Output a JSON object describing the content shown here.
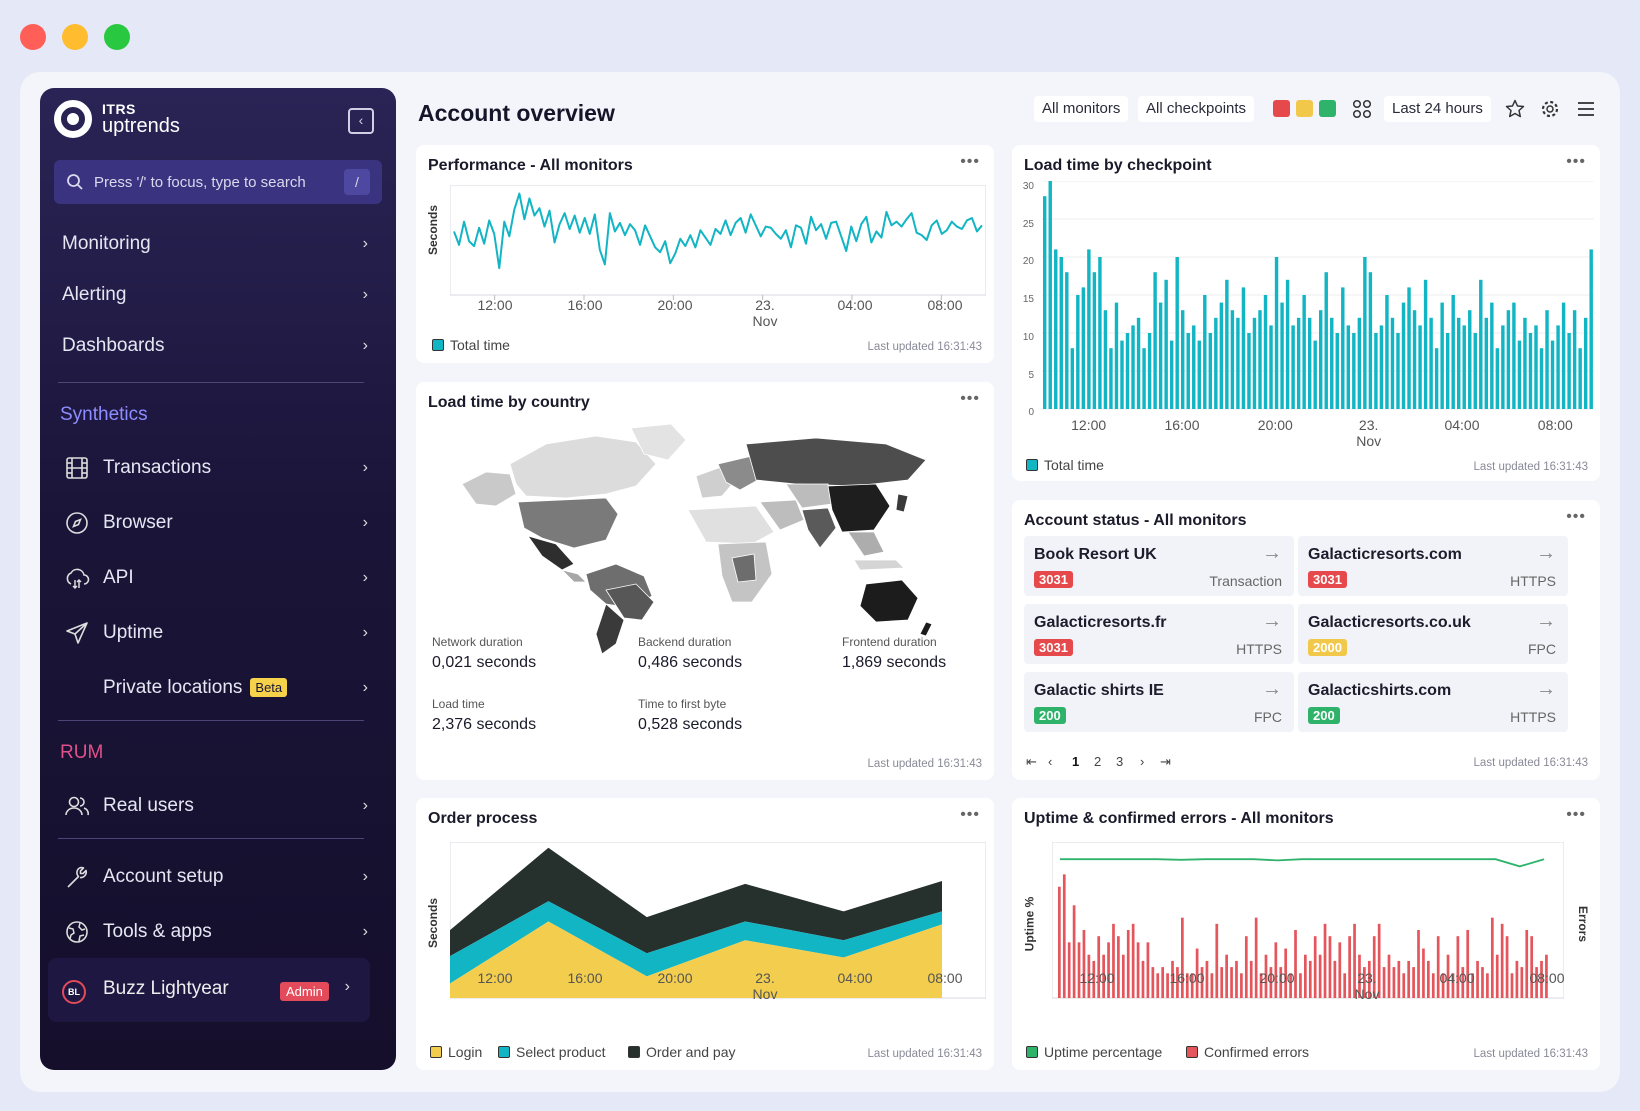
{
  "window_controls": {
    "close_color": "#ff5f57",
    "minimize_color": "#febc2e",
    "maximize_color": "#28c840"
  },
  "sidebar": {
    "brand_top": "ITRS",
    "brand_bottom": "uptrends",
    "search_placeholder": "Press '/' to focus, type to search",
    "search_key": "/",
    "top_items": [
      {
        "label": "Monitoring"
      },
      {
        "label": "Alerting"
      },
      {
        "label": "Dashboards"
      }
    ],
    "synthetics_heading": "Synthetics",
    "synthetics_items": [
      {
        "label": "Transactions",
        "icon": "film-icon"
      },
      {
        "label": "Browser",
        "icon": "compass-icon"
      },
      {
        "label": "API",
        "icon": "cloud-icon"
      },
      {
        "label": "Uptime",
        "icon": "send-icon"
      },
      {
        "label": "Private locations",
        "badge": "Beta"
      }
    ],
    "rum_heading": "RUM",
    "rum_items": [
      {
        "label": "Real users",
        "icon": "users-icon"
      }
    ],
    "setup_items": [
      {
        "label": "Account setup",
        "icon": "wrench-icon"
      },
      {
        "label": "Tools & apps",
        "icon": "globe-icon"
      }
    ],
    "user": {
      "initials": "BL",
      "name": "Buzz Lightyear",
      "role": "Admin"
    }
  },
  "header": {
    "title": "Account overview",
    "monitors": "All monitors",
    "checkpoints": "All checkpoints",
    "status_colors": [
      "#e6494c",
      "#f2c84b",
      "#2fb36b"
    ],
    "range": "Last 24 hours"
  },
  "x_ticks": [
    "12:00",
    "16:00",
    "20:00",
    "23. Nov",
    "04:00",
    "08:00"
  ],
  "performance": {
    "title": "Performance - All monitors",
    "ylabel": "Seconds",
    "legend": "Total time",
    "updated": "Last updated 16:31:43"
  },
  "checkpoint": {
    "title": "Load time by checkpoint",
    "legend": "Total time",
    "updated": "Last updated 16:31:43",
    "y_ticks": [
      "30",
      "25",
      "20",
      "15",
      "10",
      "5",
      "0"
    ]
  },
  "country": {
    "title": "Load time by country",
    "metrics": [
      {
        "label": "Network duration",
        "value": "0,021 seconds"
      },
      {
        "label": "Backend duration",
        "value": "0,486 seconds"
      },
      {
        "label": "Frontend duration",
        "value": "1,869 seconds"
      },
      {
        "label": "Load time",
        "value": "2,376 seconds"
      },
      {
        "label": "Time to first byte",
        "value": "0,528 seconds"
      }
    ],
    "updated": "Last updated 16:31:43"
  },
  "status": {
    "title": "Account status - All monitors",
    "tiles": [
      {
        "name": "Book Resort UK",
        "code": "3031",
        "type": "Transaction",
        "color": "#e6494c"
      },
      {
        "name": "Galacticresorts.com",
        "code": "3031",
        "type": "HTTPS",
        "color": "#e6494c"
      },
      {
        "name": "Galacticresorts.fr",
        "code": "3031",
        "type": "HTTPS",
        "color": "#e6494c"
      },
      {
        "name": "Galacticresorts.co.uk",
        "code": "2000",
        "type": "FPC",
        "color": "#f2c84b"
      },
      {
        "name": "Galactic shirts IE",
        "code": "200",
        "type": "FPC",
        "color": "#2fb36b"
      },
      {
        "name": "Galacticshirts.com",
        "code": "200",
        "type": "HTTPS",
        "color": "#2fb36b"
      }
    ],
    "pages": [
      "1",
      "2",
      "3"
    ],
    "updated": "Last updated 16:31:43"
  },
  "order": {
    "title": "Order process",
    "ylabel": "Seconds",
    "legend": [
      "Login",
      "Select product",
      "Order and pay"
    ],
    "updated": "Last updated 16:31:43"
  },
  "uptime": {
    "title": "Uptime & confirmed errors - All monitors",
    "ylabel_left": "Uptime %",
    "ylabel_right": "Errors",
    "legend": [
      "Uptime percentage",
      "Confirmed errors"
    ],
    "updated": "Last updated 16:31:43"
  },
  "chart_data": [
    {
      "type": "line",
      "name": "performance",
      "series": [
        {
          "name": "Total time",
          "color": "#12b5c4",
          "values": [
            5.2,
            4.1,
            6.0,
            4.4,
            4.0,
            5.5,
            4.2,
            6.1,
            5.0,
            2.2,
            6.0,
            4.8,
            7.0,
            8.3,
            6.2,
            7.9,
            6.5,
            7.1,
            5.6,
            6.9,
            4.3,
            5.8,
            6.7,
            5.4,
            6.5,
            5.1,
            6.3,
            5.0,
            6.6,
            3.7,
            2.5,
            6.7,
            5.2,
            5.9,
            4.9,
            5.8,
            5.3,
            4.1,
            5.7,
            4.8,
            3.9,
            3.5,
            4.4,
            2.6,
            3.4,
            4.6,
            4.0,
            4.9,
            3.9,
            5.3,
            4.7,
            4.1,
            5.4,
            5.0,
            6.1,
            4.9,
            5.9,
            6.3,
            5.1,
            6.6,
            5.7,
            4.8,
            5.6,
            5.5,
            5.0,
            4.6,
            5.3,
            3.9,
            5.7,
            5.5,
            4.2,
            6.4,
            5.3,
            5.8,
            4.6,
            5.9,
            6.0,
            4.8,
            3.6,
            5.6,
            4.4,
            5.8,
            6.4,
            4.3,
            5.2,
            4.7,
            6.8,
            5.7,
            6.0,
            5.6,
            6.2,
            6.7,
            5.1,
            4.9,
            4.5,
            5.7,
            6.1,
            5.0,
            5.3,
            6.0,
            5.6,
            5.4,
            6.1,
            6.3,
            5.2,
            5.7
          ]
        }
      ]
    },
    {
      "type": "bar",
      "name": "checkpoint",
      "ylim": [
        0,
        30
      ],
      "series": [
        {
          "name": "Total time",
          "color": "#12b5c4",
          "values": [
            28,
            30,
            21,
            20,
            18,
            8,
            15,
            16,
            21,
            18,
            20,
            13,
            8,
            14,
            9,
            10,
            11,
            12,
            8,
            10,
            18,
            14,
            17,
            9,
            20,
            13,
            10,
            11,
            9,
            15,
            10,
            12,
            14,
            17,
            13,
            12,
            16,
            10,
            12,
            13,
            15,
            11,
            20,
            14,
            17,
            11,
            12,
            15,
            12,
            9,
            13,
            18,
            12,
            10,
            16,
            11,
            10,
            12,
            20,
            18,
            10,
            11,
            15,
            12,
            10,
            14,
            16,
            13,
            11,
            17,
            12,
            8,
            14,
            10,
            15,
            12,
            11,
            13,
            10,
            17,
            12,
            14,
            8,
            11,
            13,
            14,
            9,
            12,
            10,
            11,
            8,
            13,
            9,
            11,
            14,
            10,
            13,
            8,
            12,
            21
          ]
        }
      ]
    },
    {
      "type": "area",
      "name": "order",
      "x": [
        "12:00",
        "16:00",
        "20:00",
        "23. Nov",
        "04:00",
        "08:00"
      ],
      "series": [
        {
          "name": "Login",
          "color": "#f2cd4e",
          "values": [
            1.0,
            5.3,
            1.5,
            4.0,
            2.8,
            5.1
          ]
        },
        {
          "name": "Select product",
          "color": "#12b5c4",
          "values": [
            1.9,
            1.4,
            1.6,
            1.3,
            1.2,
            0.9
          ]
        },
        {
          "name": "Order and pay",
          "color": "#26312e",
          "values": [
            1.8,
            3.7,
            2.5,
            2.6,
            2.0,
            2.1
          ]
        }
      ]
    },
    {
      "type": "bar",
      "name": "uptime",
      "series": [
        {
          "name": "Uptime percentage",
          "color": "#2fb36b",
          "type": "line",
          "values": [
            99.0,
            99.0,
            99.0,
            99.0,
            99.0,
            98.9,
            99.0,
            99.0,
            99.0,
            98.8,
            99.0,
            99.0,
            99.0,
            99.0,
            99.0,
            99.0,
            99.0,
            99.0,
            99.0,
            97.8,
            99.0
          ]
        },
        {
          "name": "Confirmed errors",
          "color": "#e5565c",
          "values": [
            18,
            20,
            9,
            15,
            9,
            11,
            7,
            6,
            10,
            7,
            9,
            12,
            10,
            7,
            11,
            12,
            9,
            6,
            9,
            5,
            4,
            5,
            4,
            6,
            5,
            13,
            4,
            4,
            8,
            5,
            6,
            4,
            12,
            5,
            7,
            5,
            6,
            4,
            10,
            6,
            13,
            4,
            7,
            5,
            9,
            5,
            8,
            4,
            11,
            4,
            7,
            6,
            10,
            7,
            12,
            10,
            6,
            9,
            4,
            10,
            12,
            7,
            5,
            6,
            10,
            12,
            5,
            7,
            5,
            6,
            4,
            6,
            5,
            11,
            8,
            6,
            4,
            10,
            4,
            7,
            4,
            10,
            5,
            11,
            4,
            6,
            5,
            4,
            13,
            7,
            12,
            10,
            4,
            6,
            5,
            11,
            10,
            5,
            6,
            7
          ]
        }
      ]
    }
  ]
}
